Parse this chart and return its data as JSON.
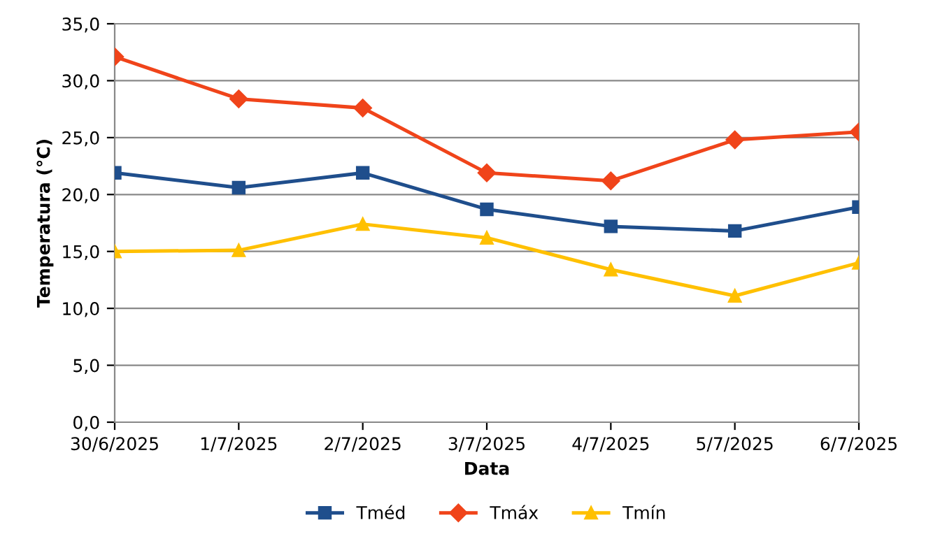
{
  "chart_data": {
    "type": "line",
    "xlabel": "Data",
    "ylabel": "Temperatura (°C)",
    "categories": [
      "30/6/2025",
      "1/7/2025",
      "2/7/2025",
      "3/7/2025",
      "4/7/2025",
      "5/7/2025",
      "6/7/2025"
    ],
    "series": [
      {
        "name": "Tméd",
        "color": "#1f4e8c",
        "marker": "square",
        "values": [
          21.9,
          20.6,
          21.9,
          18.7,
          17.2,
          16.8,
          18.9
        ]
      },
      {
        "name": "Tmáx",
        "color": "#f0441a",
        "marker": "diamond",
        "values": [
          32.1,
          28.4,
          27.6,
          21.9,
          21.2,
          24.8,
          25.5
        ]
      },
      {
        "name": "Tmín",
        "color": "#ffc000",
        "marker": "triangle",
        "values": [
          15.0,
          15.1,
          17.4,
          16.2,
          13.4,
          11.1,
          14.0
        ]
      }
    ],
    "ylim": [
      0,
      35
    ],
    "yticks": [
      {
        "value": 0,
        "label": "0,0"
      },
      {
        "value": 5,
        "label": "5,0"
      },
      {
        "value": 10,
        "label": "10,0"
      },
      {
        "value": 15,
        "label": "15,0"
      },
      {
        "value": 20,
        "label": "20,0"
      },
      {
        "value": 25,
        "label": "25,0"
      },
      {
        "value": 30,
        "label": "30,0"
      },
      {
        "value": 35,
        "label": "35,0"
      }
    ],
    "grid": "y",
    "legend": "bottom",
    "line_style": "solid"
  }
}
